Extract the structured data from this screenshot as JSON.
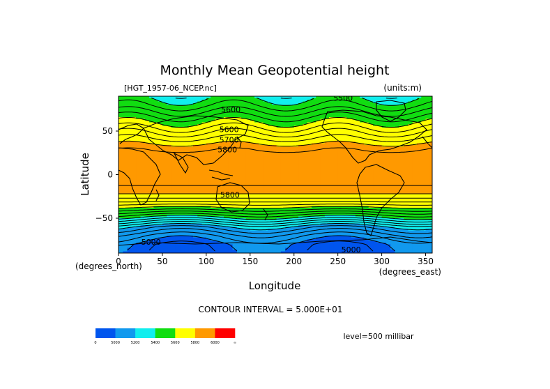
{
  "chart_data": {
    "type": "heatmap",
    "title": "Monthly Mean Geopotential height",
    "file_label": "[HGT_1957-06_NCEP.nc]",
    "units_label": "(units:m)",
    "xlabel": "Longitude",
    "ylabel": "Latitude",
    "x_unit_label": "(degrees_east)",
    "y_unit_label": "(degrees_north)",
    "xlim": [
      0,
      357.5
    ],
    "ylim": [
      -90,
      90
    ],
    "x_ticks": [
      0,
      50,
      100,
      150,
      200,
      250,
      300,
      350
    ],
    "y_ticks": [
      50,
      0,
      -50
    ],
    "y_tick_labels": [
      "50",
      "0",
      "−50"
    ],
    "contour_interval_text": "CONTOUR INTERVAL = 5.000E+01",
    "level_text": "level=500 millibar",
    "contour_labels": [
      {
        "text": "5500",
        "lon": 256,
        "lat": 88
      },
      {
        "text": "5600",
        "lon": 128,
        "lat": 75
      },
      {
        "text": "5600",
        "lon": 126,
        "lat": 52
      },
      {
        "text": "5700",
        "lon": 126,
        "lat": 40
      },
      {
        "text": "5800",
        "lon": 124,
        "lat": 29
      },
      {
        "text": "5800",
        "lon": 127,
        "lat": -23
      },
      {
        "text": "5000",
        "lon": 37,
        "lat": -77
      },
      {
        "text": "5000",
        "lon": 265,
        "lat": -86
      }
    ],
    "colorbar": {
      "colors": [
        "#0055ee",
        "#1199ee",
        "#11eeee",
        "#11dd11",
        "#ffff00",
        "#ff9900",
        "#ff0000"
      ],
      "tick_labels": [
        "0",
        "5000",
        "5200",
        "5400",
        "5600",
        "5800",
        "6000",
        "∞"
      ]
    },
    "lat_bands": [
      {
        "lat": 90,
        "value": 5380
      },
      {
        "lat": 80,
        "value": 5440
      },
      {
        "lat": 70,
        "value": 5520
      },
      {
        "lat": 60,
        "value": 5600
      },
      {
        "lat": 50,
        "value": 5680
      },
      {
        "lat": 40,
        "value": 5760
      },
      {
        "lat": 30,
        "value": 5840
      },
      {
        "lat": 20,
        "value": 5880
      },
      {
        "lat": 10,
        "value": 5880
      },
      {
        "lat": 0,
        "value": 5870
      },
      {
        "lat": -10,
        "value": 5860
      },
      {
        "lat": -20,
        "value": 5820
      },
      {
        "lat": -30,
        "value": 5720
      },
      {
        "lat": -40,
        "value": 5560
      },
      {
        "lat": -50,
        "value": 5380
      },
      {
        "lat": -60,
        "value": 5180
      },
      {
        "lat": -70,
        "value": 5060
      },
      {
        "lat": -80,
        "value": 4980
      },
      {
        "lat": -90,
        "value": 4960
      }
    ]
  }
}
